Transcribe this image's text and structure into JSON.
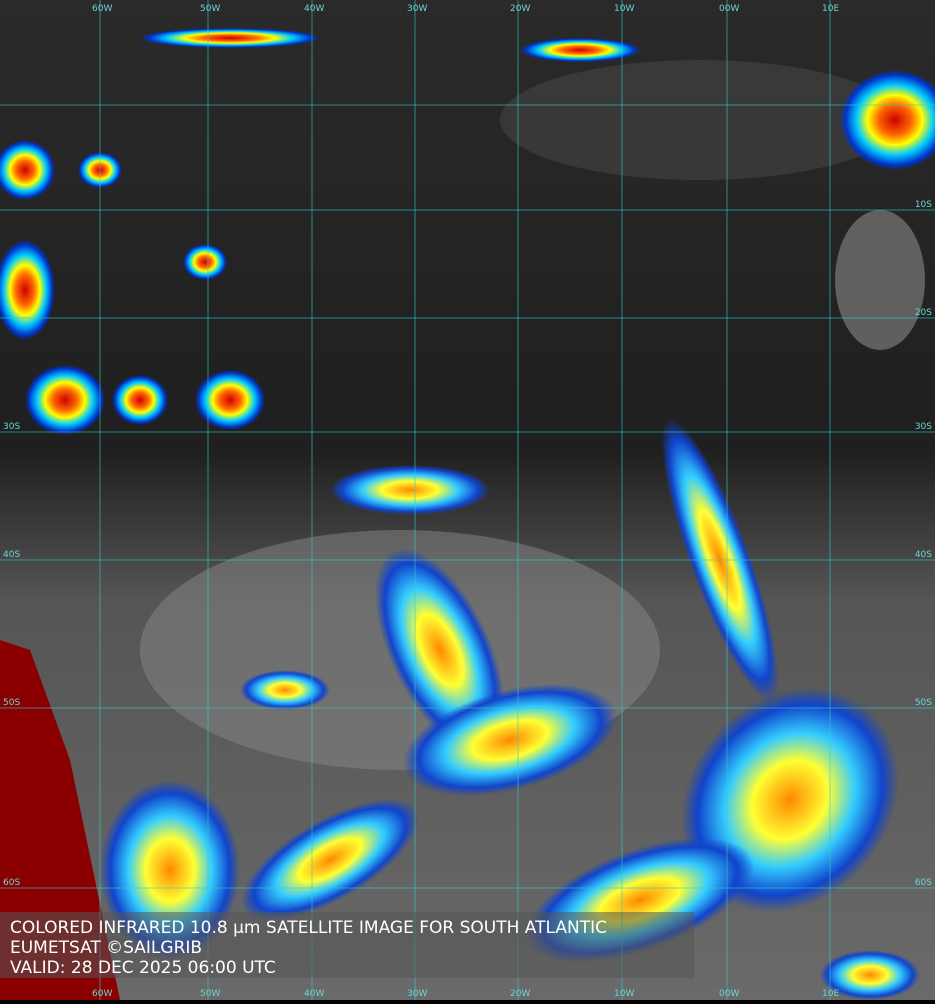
{
  "map": {
    "longitude_labels": [
      "60W",
      "50W",
      "40W",
      "30W",
      "20W",
      "10W",
      "00W",
      "10E"
    ],
    "latitude_labels_left": [
      "30S",
      "40S",
      "50S",
      "60S"
    ],
    "latitude_labels_right": [
      "10S",
      "20S",
      "30S",
      "40S",
      "50S",
      "60S"
    ],
    "caption": [
      "COLORED INFRARED 10.8 µm SATELLITE IMAGE FOR SOUTH ATLANTIC",
      "EUMETSAT ©SAILGRIB",
      "VALID:  28 DEC 2025 06:00 UTC"
    ]
  }
}
